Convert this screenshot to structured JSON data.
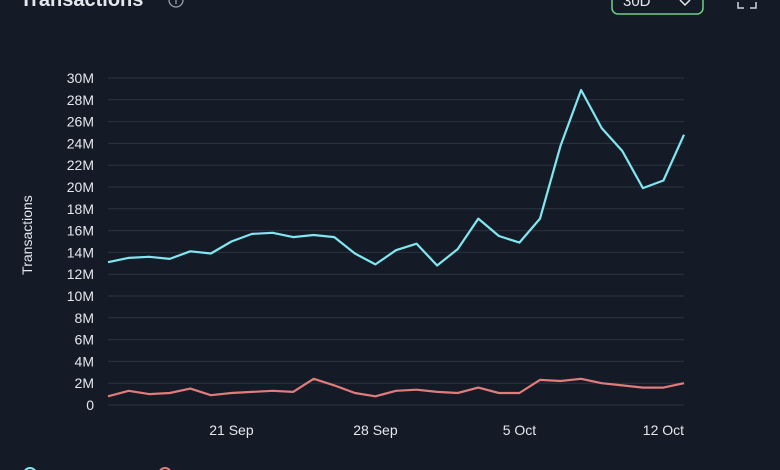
{
  "chart_data": {
    "type": "line",
    "title": "Transactions",
    "range_button": "30D",
    "y_label": "Transactions",
    "categories": [
      null,
      null,
      null,
      null,
      null,
      null,
      "21 Sep",
      null,
      null,
      null,
      null,
      null,
      null,
      "28 Sep",
      null,
      null,
      null,
      null,
      null,
      null,
      "5 Oct",
      null,
      null,
      null,
      null,
      null,
      null,
      "12 Oct",
      null
    ],
    "series": [
      {
        "color": "#7fe7f0",
        "values": [
          13100000,
          13500000,
          13600000,
          13400000,
          14100000,
          13900000,
          15000000,
          15700000,
          15800000,
          15400000,
          15600000,
          15400000,
          13900000,
          12900000,
          14200000,
          14800000,
          12800000,
          14300000,
          17100000,
          15500000,
          14900000,
          17100000,
          23800000,
          28900000,
          25400000,
          23300000,
          19900000,
          20600000,
          24800000
        ]
      },
      {
        "color": "#e07c7c",
        "values": [
          800000,
          1300000,
          1000000,
          1100000,
          1500000,
          900000,
          1100000,
          1200000,
          1300000,
          1200000,
          2400000,
          1800000,
          1100000,
          800000,
          1300000,
          1400000,
          1200000,
          1100000,
          1600000,
          1100000,
          1100000,
          2300000,
          2200000,
          2400000,
          2000000,
          1800000,
          1600000,
          1600000,
          2000000
        ]
      }
    ],
    "ylim": [
      0,
      30000000
    ],
    "yticks": [
      0,
      {
        "value": 2000000,
        "label": "2M"
      },
      {
        "value": 4000000,
        "label": "4M"
      },
      {
        "value": 6000000,
        "label": "6M"
      },
      {
        "value": 8000000,
        "label": "8M"
      },
      {
        "value": 10000000,
        "label": "10M"
      },
      {
        "value": 12000000,
        "label": "12M"
      },
      {
        "value": 14000000,
        "label": "14M"
      },
      {
        "value": 16000000,
        "label": "16M"
      },
      {
        "value": 18000000,
        "label": "18M"
      },
      {
        "value": 20000000,
        "label": "20M"
      },
      {
        "value": 22000000,
        "label": "22M"
      },
      {
        "value": 24000000,
        "label": "24M"
      },
      {
        "value": 26000000,
        "label": "26M"
      },
      {
        "value": 28000000,
        "label": "28M"
      },
      {
        "value": 30000000,
        "label": "30M"
      }
    ],
    "grid": true
  }
}
